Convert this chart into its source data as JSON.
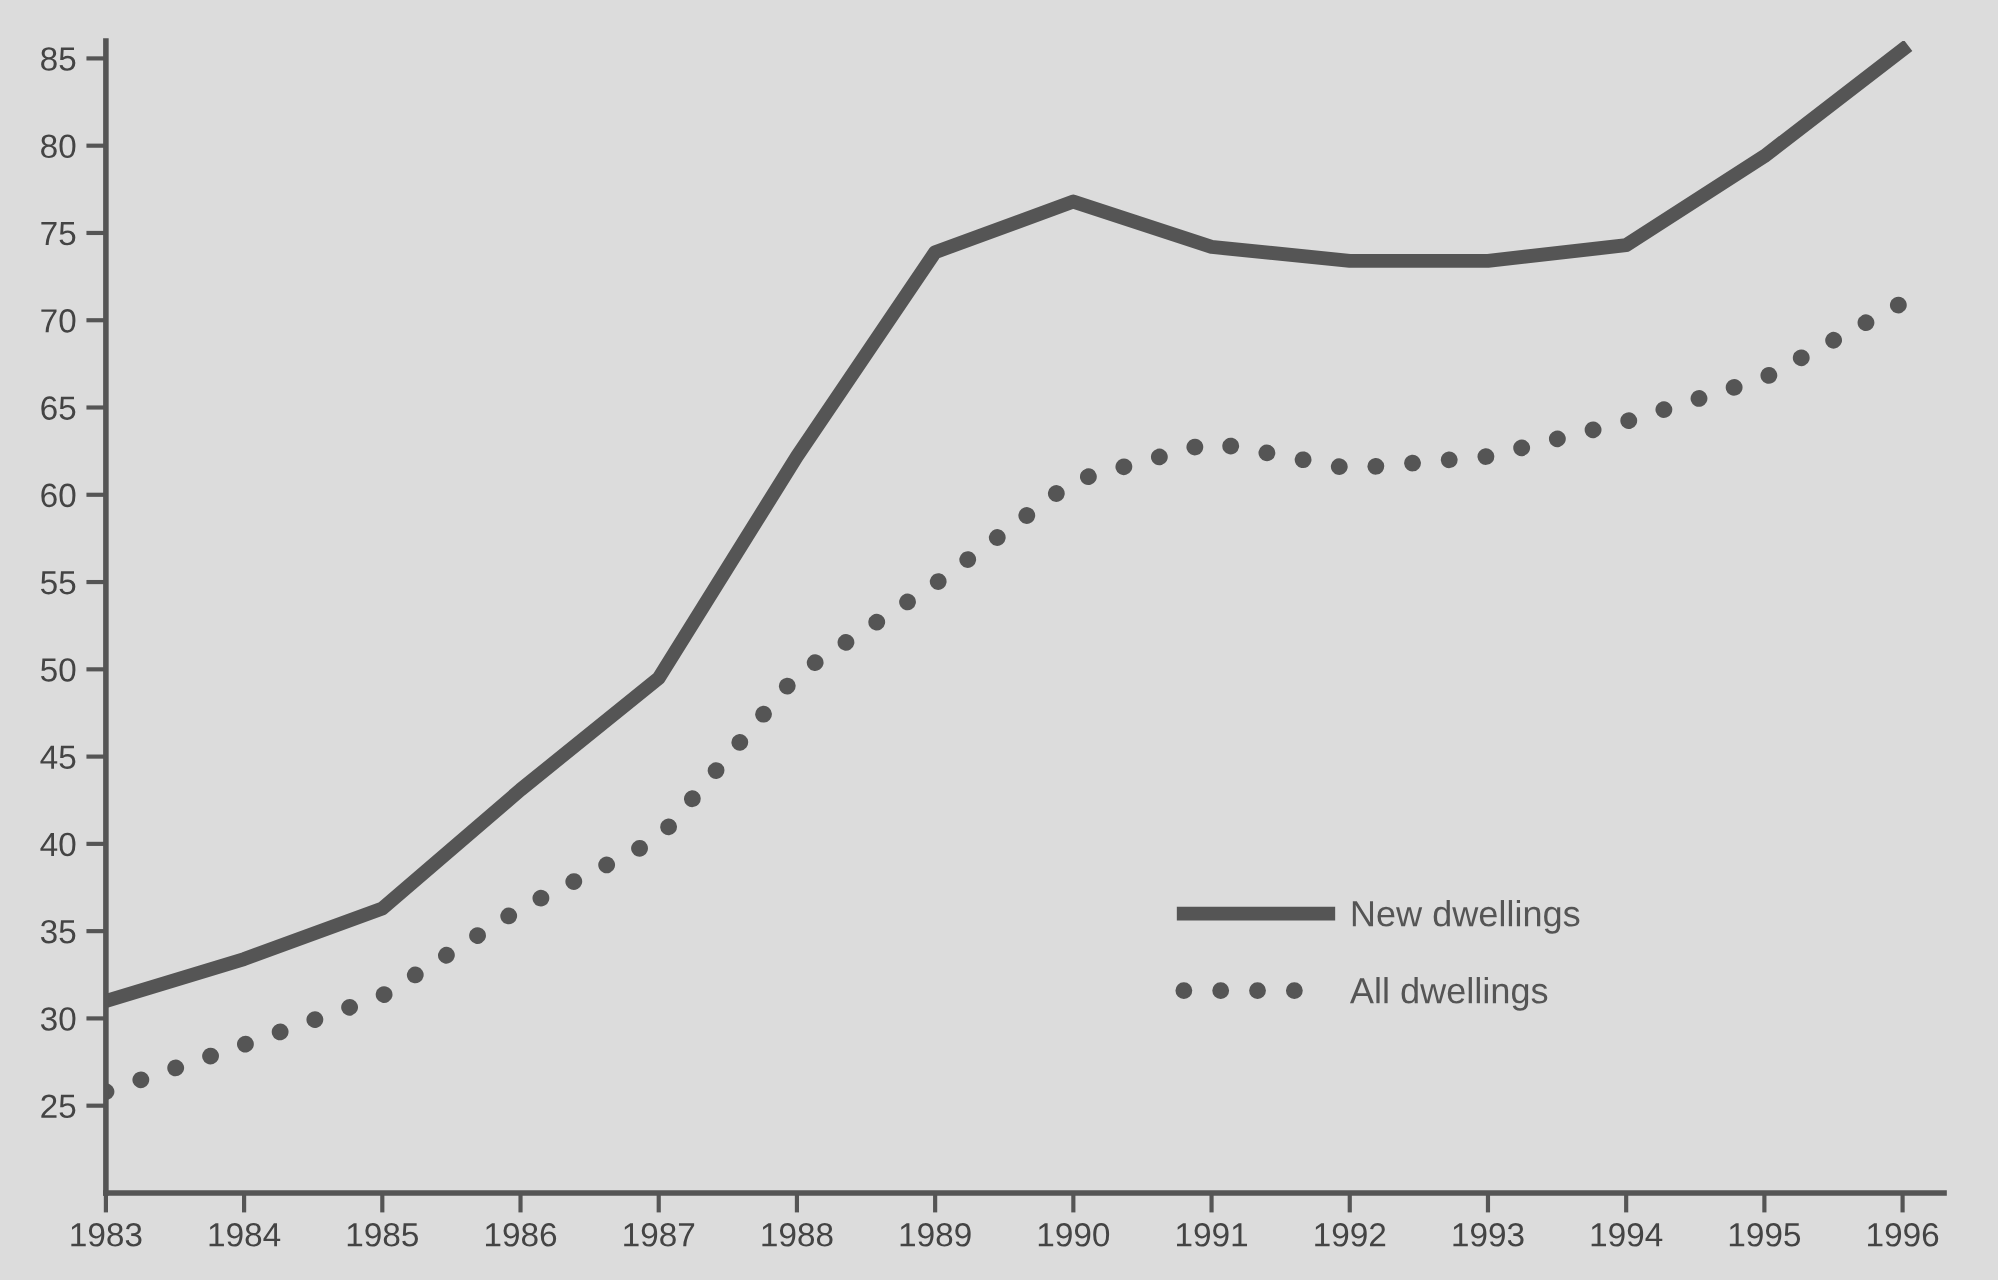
{
  "chart_data": {
    "type": "line",
    "x": [
      1983,
      1984,
      1985,
      1986,
      1987,
      1988,
      1989,
      1990,
      1991,
      1992,
      1993,
      1994,
      1995,
      1996
    ],
    "series": [
      {
        "name": "New dwellings",
        "color": "#555555",
        "line_style": "solid",
        "values": [
          31,
          33.4,
          36.3,
          43.1,
          49.5,
          62.2,
          73.9,
          76.8,
          74.2,
          73.4,
          73.4,
          74.3,
          79.4,
          85.5
        ]
      },
      {
        "name": "All dwellings",
        "color": "#555555",
        "line_style": "dotted",
        "values": [
          25.8,
          28.5,
          31.3,
          36.3,
          40.3,
          49.7,
          54.9,
          60.8,
          63,
          61.5,
          62.2,
          64.2,
          66.7,
          71
        ]
      }
    ],
    "xlim": [
      1983,
      1996.3
    ],
    "xticks": [
      1983,
      1984,
      1985,
      1986,
      1987,
      1988,
      1989,
      1990,
      1991,
      1992,
      1993,
      1994,
      1995,
      1996
    ],
    "ylim": [
      20,
      86
    ],
    "yticks": [
      25,
      30,
      35,
      40,
      45,
      50,
      55,
      60,
      65,
      70,
      75,
      80,
      85
    ],
    "grid": false,
    "legend": "bottom right",
    "marker": "none"
  }
}
